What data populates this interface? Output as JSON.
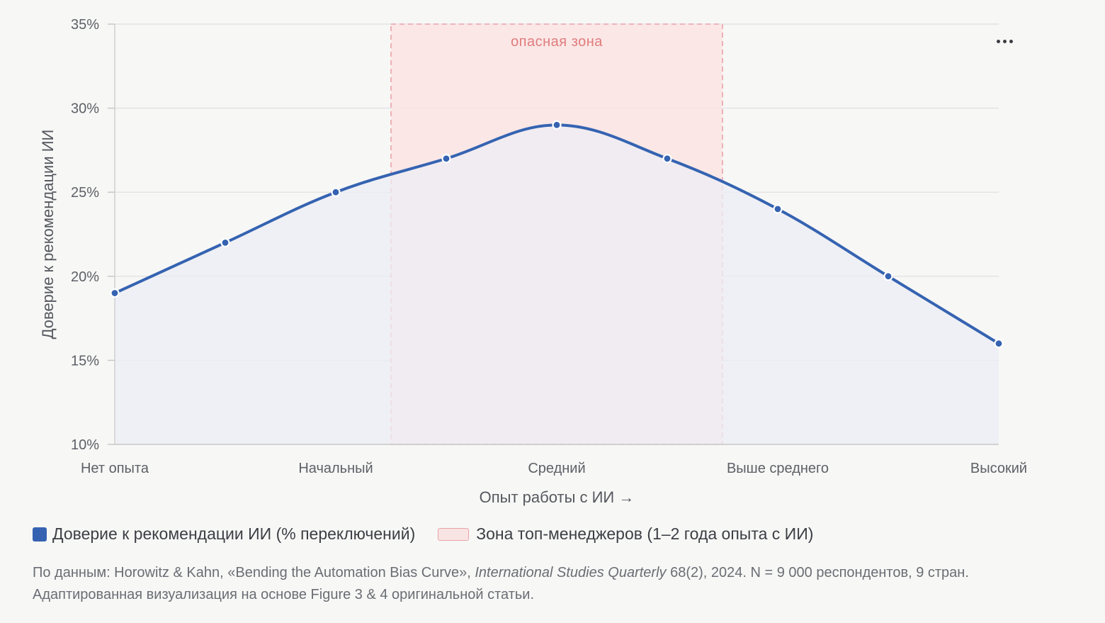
{
  "chart_data": {
    "type": "area",
    "categories": [
      "Нет опыта",
      "",
      "Начальный",
      "",
      "Средний",
      "",
      "Выше среднего",
      "",
      "Высокий"
    ],
    "x_tick_labels": [
      "Нет опыта",
      "Начальный",
      "Средний",
      "Выше среднего",
      "Высокий"
    ],
    "series": [
      {
        "name": "Доверие к рекомендации ИИ (% переключений)",
        "values": [
          19,
          22,
          25,
          27,
          29,
          27,
          24,
          20,
          16
        ],
        "color": "#3563b1",
        "fill": "#eceef4"
      }
    ],
    "xlabel": "Опыт работы с ИИ →",
    "ylabel": "Доверие к рекомендации ИИ",
    "ylim": [
      10,
      35
    ],
    "y_ticks": [
      10,
      15,
      20,
      25,
      30,
      35
    ],
    "y_tick_suffix": "%",
    "grid": true,
    "highlight_band": {
      "label": "опасная зона",
      "from_category_position": 2.5,
      "to_category_position": 5.5,
      "fill": "#f9e4e4",
      "stroke": "#eba3a7"
    },
    "legend": {
      "placement": "bottom-left",
      "series_label": "Доверие к рекомендации ИИ (% переключений)",
      "zone_label": "Зона топ-менеджеров (1–2 года опыта с ИИ)"
    }
  },
  "menu": {
    "icon": "more-horizontal-icon"
  },
  "source": {
    "prefix": "По данным: Horowitz & Kahn, «Bending the Automation Bias Curve», ",
    "journal": "International Studies Quarterly",
    "suffix": " 68(2), 2024. N = 9 000 респондентов, 9 стран. Адаптированная визуализация на основе Figure 3 & 4 оригинальной статьи."
  }
}
